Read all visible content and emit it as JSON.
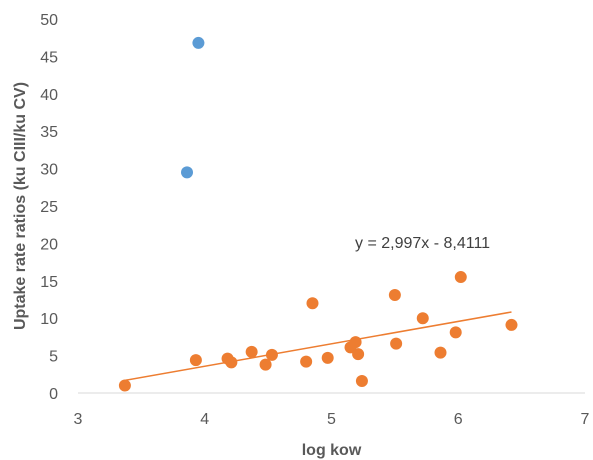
{
  "chart_data": {
    "type": "scatter",
    "title": "",
    "xlabel": "log kow",
    "ylabel": "Uptake rate ratios (ku CIII/ku CV)",
    "xlim": [
      3,
      7
    ],
    "ylim": [
      0,
      50
    ],
    "x_ticks": [
      "3",
      "4",
      "5",
      "6",
      "7"
    ],
    "y_ticks": [
      "0",
      "5",
      "10",
      "15",
      "20",
      "25",
      "30",
      "35",
      "40",
      "45",
      "50"
    ],
    "grid": false,
    "legend": "none",
    "series": [
      {
        "color": "#5b9bd5",
        "points": [
          {
            "x": 3.95,
            "y": 46.8
          },
          {
            "x": 3.86,
            "y": 29.5
          }
        ]
      },
      {
        "color": "#ed7d31",
        "points": [
          {
            "x": 3.37,
            "y": 1.0
          },
          {
            "x": 3.93,
            "y": 4.4
          },
          {
            "x": 4.18,
            "y": 4.6
          },
          {
            "x": 4.21,
            "y": 4.1
          },
          {
            "x": 4.37,
            "y": 5.5
          },
          {
            "x": 4.48,
            "y": 3.8
          },
          {
            "x": 4.53,
            "y": 5.1
          },
          {
            "x": 4.8,
            "y": 4.2
          },
          {
            "x": 4.85,
            "y": 12.0
          },
          {
            "x": 4.97,
            "y": 4.7
          },
          {
            "x": 5.15,
            "y": 6.1
          },
          {
            "x": 5.19,
            "y": 6.8
          },
          {
            "x": 5.21,
            "y": 5.2
          },
          {
            "x": 5.24,
            "y": 1.6
          },
          {
            "x": 5.5,
            "y": 13.1
          },
          {
            "x": 5.51,
            "y": 6.6
          },
          {
            "x": 5.72,
            "y": 10.0
          },
          {
            "x": 5.86,
            "y": 5.4
          },
          {
            "x": 5.98,
            "y": 8.1
          },
          {
            "x": 6.02,
            "y": 15.5
          },
          {
            "x": 6.42,
            "y": 9.1
          }
        ],
        "trendline": {
          "slope": 2.997,
          "intercept": -8.4111,
          "x_range": [
            3.37,
            6.42
          ],
          "color": "#ed7d31",
          "equation_label": "y = 2,997x - 8,4111"
        }
      }
    ]
  }
}
